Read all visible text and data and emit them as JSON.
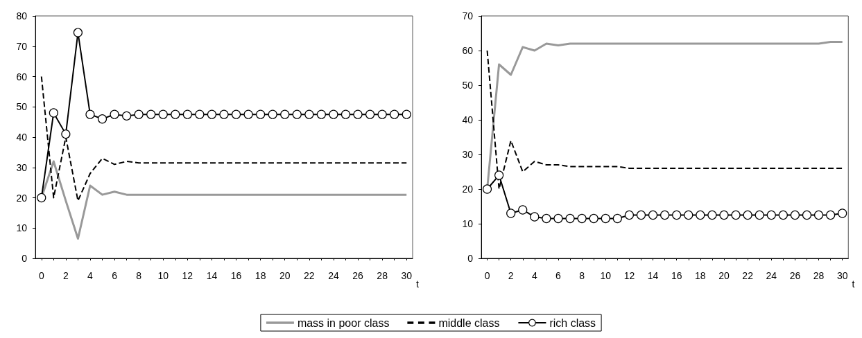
{
  "chart_data": [
    {
      "type": "line",
      "xlabel": "t",
      "x": [
        0,
        1,
        2,
        3,
        4,
        5,
        6,
        7,
        8,
        9,
        10,
        11,
        12,
        13,
        14,
        15,
        16,
        17,
        18,
        19,
        20,
        21,
        22,
        23,
        24,
        25,
        26,
        27,
        28,
        29,
        30
      ],
      "xlim": [
        -0.5,
        30.5
      ],
      "xticks": [
        0,
        2,
        4,
        6,
        8,
        10,
        12,
        14,
        16,
        18,
        20,
        22,
        24,
        26,
        28,
        30
      ],
      "ylim": [
        0,
        80
      ],
      "yticks": [
        0,
        10,
        20,
        30,
        40,
        50,
        60,
        70,
        80
      ],
      "grid": false,
      "legend": "bottom",
      "series": [
        {
          "name": "mass in poor class",
          "color": "#999999",
          "line_style": "solid",
          "marker": "none",
          "values": [
            20,
            32,
            19,
            6.5,
            24,
            21,
            22,
            21,
            21,
            21,
            21,
            21,
            21,
            21,
            21,
            21,
            21,
            21,
            21,
            21,
            21,
            21,
            21,
            21,
            21,
            21,
            21,
            21,
            21,
            21,
            21
          ]
        },
        {
          "name": "middle class",
          "color": "#000000",
          "line_style": "dashed",
          "marker": "none",
          "values": [
            60,
            20,
            40,
            19,
            28,
            33,
            31,
            32,
            31.5,
            31.5,
            31.5,
            31.5,
            31.5,
            31.5,
            31.5,
            31.5,
            31.5,
            31.5,
            31.5,
            31.5,
            31.5,
            31.5,
            31.5,
            31.5,
            31.5,
            31.5,
            31.5,
            31.5,
            31.5,
            31.5,
            31.5
          ]
        },
        {
          "name": "rich class",
          "color": "#000000",
          "line_style": "solid",
          "marker": "circle",
          "values": [
            20,
            48,
            41,
            74.5,
            47.5,
            46,
            47.5,
            47,
            47.5,
            47.5,
            47.5,
            47.5,
            47.5,
            47.5,
            47.5,
            47.5,
            47.5,
            47.5,
            47.5,
            47.5,
            47.5,
            47.5,
            47.5,
            47.5,
            47.5,
            47.5,
            47.5,
            47.5,
            47.5,
            47.5,
            47.5
          ]
        }
      ]
    },
    {
      "type": "line",
      "xlabel": "t",
      "x": [
        0,
        1,
        2,
        3,
        4,
        5,
        6,
        7,
        8,
        9,
        10,
        11,
        12,
        13,
        14,
        15,
        16,
        17,
        18,
        19,
        20,
        21,
        22,
        23,
        24,
        25,
        26,
        27,
        28,
        29,
        30
      ],
      "xlim": [
        -0.5,
        30.5
      ],
      "xticks": [
        0,
        2,
        4,
        6,
        8,
        10,
        12,
        14,
        16,
        18,
        20,
        22,
        24,
        26,
        28,
        30
      ],
      "ylim": [
        0,
        70
      ],
      "yticks": [
        0,
        10,
        20,
        30,
        40,
        50,
        60,
        70
      ],
      "grid": false,
      "legend": "bottom",
      "series": [
        {
          "name": "mass in poor class",
          "color": "#999999",
          "line_style": "solid",
          "marker": "none",
          "values": [
            20,
            56,
            53,
            61,
            60,
            62,
            61.5,
            62,
            62,
            62,
            62,
            62,
            62,
            62,
            62,
            62,
            62,
            62,
            62,
            62,
            62,
            62,
            62,
            62,
            62,
            62,
            62,
            62,
            62,
            62.5,
            62.5
          ]
        },
        {
          "name": "middle class",
          "color": "#000000",
          "line_style": "dashed",
          "marker": "none",
          "values": [
            60,
            20,
            34,
            25,
            28,
            27,
            27,
            26.5,
            26.5,
            26.5,
            26.5,
            26.5,
            26,
            26,
            26,
            26,
            26,
            26,
            26,
            26,
            26,
            26,
            26,
            26,
            26,
            26,
            26,
            26,
            26,
            26,
            26
          ]
        },
        {
          "name": "rich class",
          "color": "#000000",
          "line_style": "solid",
          "marker": "circle",
          "values": [
            20,
            24,
            13,
            14,
            12,
            11.5,
            11.5,
            11.5,
            11.5,
            11.5,
            11.5,
            11.5,
            12.5,
            12.5,
            12.5,
            12.5,
            12.5,
            12.5,
            12.5,
            12.5,
            12.5,
            12.5,
            12.5,
            12.5,
            12.5,
            12.5,
            12.5,
            12.5,
            12.5,
            12.5,
            13
          ]
        }
      ]
    }
  ]
}
